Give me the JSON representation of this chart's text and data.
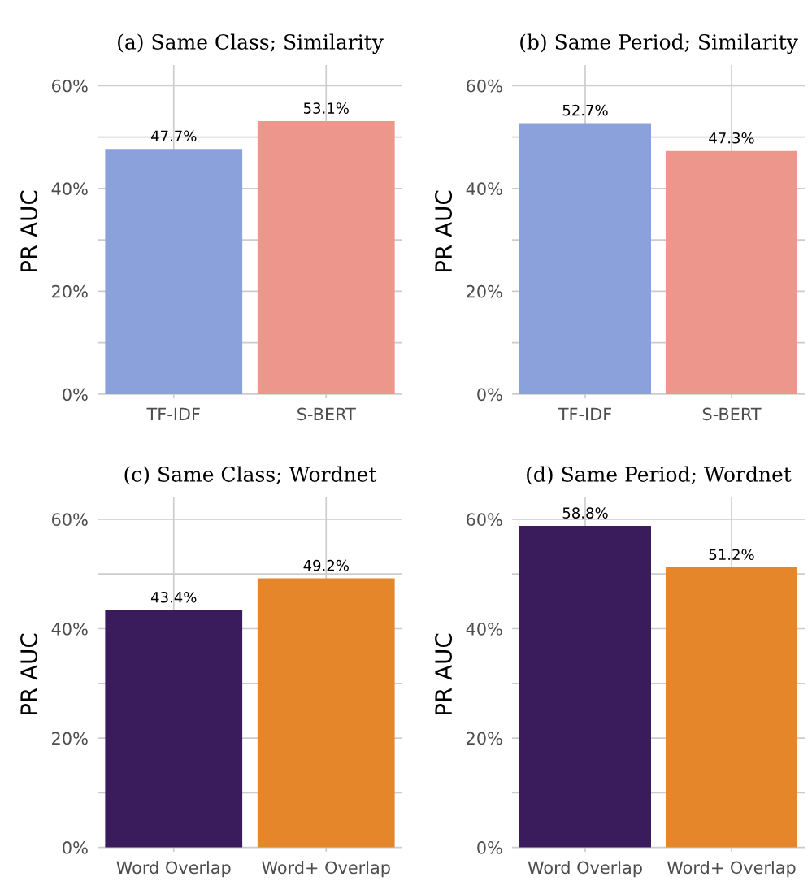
{
  "chart_data": [
    {
      "type": "bar",
      "title": "(a) Same Class; Similarity",
      "ylabel": "PR AUC",
      "categories": [
        "TF-IDF",
        "S-BERT"
      ],
      "values": [
        47.7,
        53.1
      ],
      "colors": [
        "#8aa1dc",
        "#ed968c"
      ],
      "value_labels": [
        "47.7%",
        "53.1%"
      ],
      "ylim": [
        -0.8,
        64
      ],
      "yticks": [
        {
          "value": 0,
          "label": "0%"
        },
        {
          "value": 10,
          "label": null
        },
        {
          "value": 20,
          "label": "20%"
        },
        {
          "value": 30,
          "label": null
        },
        {
          "value": 40,
          "label": "40%"
        },
        {
          "value": 50,
          "label": null
        },
        {
          "value": 60,
          "label": "60%"
        }
      ],
      "grid": true,
      "legend": false
    },
    {
      "type": "bar",
      "title": "(b) Same Period; Similarity",
      "ylabel": "PR AUC",
      "categories": [
        "TF-IDF",
        "S-BERT"
      ],
      "values": [
        52.7,
        47.3
      ],
      "colors": [
        "#8aa1dc",
        "#ed968c"
      ],
      "value_labels": [
        "52.7%",
        "47.3%"
      ],
      "ylim": [
        -0.8,
        64
      ],
      "yticks": [
        {
          "value": 0,
          "label": "0%"
        },
        {
          "value": 10,
          "label": null
        },
        {
          "value": 20,
          "label": "20%"
        },
        {
          "value": 30,
          "label": null
        },
        {
          "value": 40,
          "label": "40%"
        },
        {
          "value": 50,
          "label": null
        },
        {
          "value": 60,
          "label": "60%"
        }
      ],
      "grid": true,
      "legend": false
    },
    {
      "type": "bar",
      "title": "(c) Same Class; Wordnet",
      "ylabel": "PR AUC",
      "categories": [
        "Word Overlap",
        "Word+ Overlap"
      ],
      "values": [
        43.4,
        49.2
      ],
      "colors": [
        "#3a1b5c",
        "#e6862a"
      ],
      "value_labels": [
        "43.4%",
        "49.2%"
      ],
      "ylim": [
        -0.8,
        64
      ],
      "yticks": [
        {
          "value": 0,
          "label": "0%"
        },
        {
          "value": 10,
          "label": null
        },
        {
          "value": 20,
          "label": "20%"
        },
        {
          "value": 30,
          "label": null
        },
        {
          "value": 40,
          "label": "40%"
        },
        {
          "value": 50,
          "label": null
        },
        {
          "value": 60,
          "label": "60%"
        }
      ],
      "grid": true,
      "legend": false
    },
    {
      "type": "bar",
      "title": "(d) Same Period; Wordnet",
      "ylabel": "PR AUC",
      "categories": [
        "Word Overlap",
        "Word+ Overlap"
      ],
      "values": [
        58.8,
        51.2
      ],
      "colors": [
        "#3a1b5c",
        "#e6862a"
      ],
      "value_labels": [
        "58.8%",
        "51.2%"
      ],
      "ylim": [
        -0.8,
        64
      ],
      "yticks": [
        {
          "value": 0,
          "label": "0%"
        },
        {
          "value": 10,
          "label": null
        },
        {
          "value": 20,
          "label": "20%"
        },
        {
          "value": 30,
          "label": null
        },
        {
          "value": 40,
          "label": "40%"
        },
        {
          "value": 50,
          "label": null
        },
        {
          "value": 60,
          "label": "60%"
        }
      ],
      "grid": true,
      "legend": false
    }
  ]
}
